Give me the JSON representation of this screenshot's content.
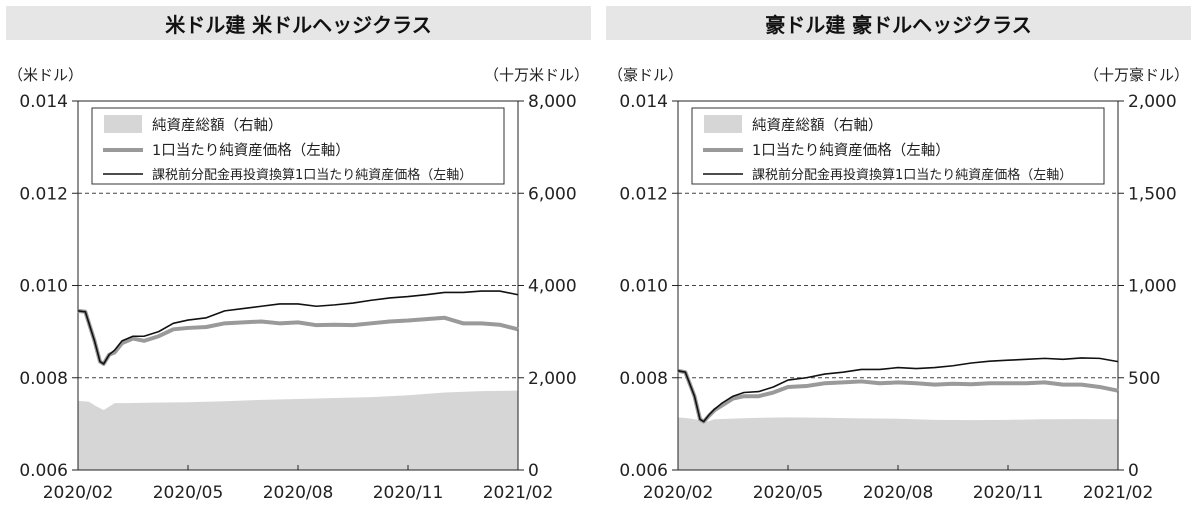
{
  "chart_data": [
    {
      "type": "line",
      "title": "米ドル建 米ドルヘッジクラス",
      "ylabel_left": "（米ドル）",
      "ylabel_right": "（十万米ドル）",
      "ylim_left": [
        0.006,
        0.014
      ],
      "ylim_right": [
        0,
        8000
      ],
      "yticks_left": [
        "0.014",
        "0.012",
        "0.010",
        "0.008",
        "0.006"
      ],
      "yticks_right": [
        "8,000",
        "6,000",
        "4,000",
        "2,000",
        "0"
      ],
      "xticks": [
        "2020/02",
        "2020/05",
        "2020/08",
        "2020/11",
        "2021/02"
      ],
      "grid": "dashed-horizontal",
      "legend_position": "top",
      "legend": [
        "純資産総額（右軸）",
        "1口当たり純資産価格（左軸）",
        "課税前分配金再投資換算1口当たり純資産価格（左軸）"
      ],
      "series": [
        {
          "name": "純資産総額（右軸）",
          "axis": "right",
          "kind": "area",
          "color": "#d6d6d6",
          "x": [
            0,
            0.3,
            0.5,
            0.7,
            1.0,
            1.3,
            2,
            3,
            4,
            5,
            6,
            7,
            8,
            9,
            10,
            11,
            12
          ],
          "values": [
            1500,
            1480,
            1380,
            1300,
            1450,
            1450,
            1460,
            1470,
            1490,
            1520,
            1540,
            1560,
            1580,
            1620,
            1680,
            1710,
            1720
          ]
        },
        {
          "name": "1口当たり純資産価格（左軸）",
          "axis": "left",
          "kind": "line",
          "color": "#9a9a9a",
          "x": [
            0,
            0.2,
            0.45,
            0.6,
            0.7,
            0.85,
            1.0,
            1.2,
            1.5,
            1.8,
            2.2,
            2.6,
            3.0,
            3.5,
            4.0,
            4.5,
            5.0,
            5.5,
            6.0,
            6.5,
            7.0,
            7.5,
            8.0,
            8.5,
            9.0,
            9.5,
            10.0,
            10.5,
            11.0,
            11.5,
            12.0
          ],
          "values": [
            0.00945,
            0.00943,
            0.0088,
            0.00835,
            0.0083,
            0.0085,
            0.00855,
            0.00875,
            0.00885,
            0.0088,
            0.0089,
            0.00905,
            0.00908,
            0.0091,
            0.00918,
            0.0092,
            0.00922,
            0.00918,
            0.0092,
            0.00914,
            0.00915,
            0.00914,
            0.00918,
            0.00922,
            0.00924,
            0.00927,
            0.0093,
            0.00918,
            0.00918,
            0.00915,
            0.00905
          ]
        },
        {
          "name": "課税前分配金再投資換算1口当たり純資産価格（左軸）",
          "axis": "left",
          "kind": "line",
          "color": "#111111",
          "x": [
            0,
            0.2,
            0.45,
            0.6,
            0.7,
            0.85,
            1.0,
            1.2,
            1.5,
            1.8,
            2.2,
            2.6,
            3.0,
            3.5,
            4.0,
            4.5,
            5.0,
            5.5,
            6.0,
            6.5,
            7.0,
            7.5,
            8.0,
            8.5,
            9.0,
            9.5,
            10.0,
            10.5,
            11.0,
            11.5,
            12.0
          ],
          "values": [
            0.00945,
            0.00943,
            0.0088,
            0.00835,
            0.0083,
            0.0085,
            0.0086,
            0.0088,
            0.0089,
            0.0089,
            0.009,
            0.00918,
            0.00925,
            0.0093,
            0.00945,
            0.0095,
            0.00955,
            0.0096,
            0.0096,
            0.00955,
            0.00958,
            0.00962,
            0.00968,
            0.00973,
            0.00976,
            0.0098,
            0.00985,
            0.00985,
            0.00988,
            0.00988,
            0.0098
          ]
        }
      ]
    },
    {
      "type": "line",
      "title": "豪ドル建 豪ドルヘッジクラス",
      "ylabel_left": "（豪ドル）",
      "ylabel_right": "（十万豪ドル）",
      "ylim_left": [
        0.006,
        0.014
      ],
      "ylim_right": [
        0,
        2000
      ],
      "yticks_left": [
        "0.014",
        "0.012",
        "0.010",
        "0.008",
        "0.006"
      ],
      "yticks_right": [
        "2,000",
        "1,500",
        "1,000",
        "500",
        "0"
      ],
      "xticks": [
        "2020/02",
        "2020/05",
        "2020/08",
        "2020/11",
        "2021/02"
      ],
      "grid": "dashed-horizontal",
      "legend_position": "top",
      "legend": [
        "純資産総額（右軸）",
        "1口当たり純資産価格（左軸）",
        "課税前分配金再投資換算1口当たり純資産価格（左軸）"
      ],
      "series": [
        {
          "name": "純資産総額（右軸）",
          "axis": "right",
          "kind": "area",
          "color": "#d6d6d6",
          "x": [
            0,
            0.3,
            0.6,
            0.8,
            1.0,
            2,
            3,
            4,
            5,
            6,
            7,
            8,
            9,
            10,
            11,
            12
          ],
          "values": [
            285,
            280,
            270,
            262,
            275,
            282,
            285,
            283,
            280,
            278,
            272,
            270,
            272,
            275,
            276,
            275
          ]
        },
        {
          "name": "1口当たり純資産価格（左軸）",
          "axis": "left",
          "kind": "line",
          "color": "#9a9a9a",
          "x": [
            0,
            0.2,
            0.45,
            0.6,
            0.7,
            0.85,
            1.0,
            1.2,
            1.5,
            1.8,
            2.2,
            2.6,
            3.0,
            3.5,
            4.0,
            4.5,
            5.0,
            5.5,
            6.0,
            6.5,
            7.0,
            7.5,
            8.0,
            8.5,
            9.0,
            9.5,
            10.0,
            10.5,
            11.0,
            11.5,
            12.0
          ],
          "values": [
            0.00815,
            0.00812,
            0.0076,
            0.0071,
            0.00705,
            0.00718,
            0.0073,
            0.0074,
            0.00755,
            0.0076,
            0.0076,
            0.00768,
            0.0078,
            0.00782,
            0.00788,
            0.0079,
            0.00792,
            0.00788,
            0.0079,
            0.00788,
            0.00785,
            0.00787,
            0.00786,
            0.00788,
            0.00788,
            0.00788,
            0.0079,
            0.00785,
            0.00785,
            0.0078,
            0.00772
          ]
        },
        {
          "name": "課税前分配金再投資換算1口当たり純資産価格（左軸）",
          "axis": "left",
          "kind": "line",
          "color": "#111111",
          "x": [
            0,
            0.2,
            0.45,
            0.6,
            0.7,
            0.85,
            1.0,
            1.2,
            1.5,
            1.8,
            2.2,
            2.6,
            3.0,
            3.5,
            4.0,
            4.5,
            5.0,
            5.5,
            6.0,
            6.5,
            7.0,
            7.5,
            8.0,
            8.5,
            9.0,
            9.5,
            10.0,
            10.5,
            11.0,
            11.5,
            12.0
          ],
          "values": [
            0.00815,
            0.00812,
            0.0076,
            0.0071,
            0.00705,
            0.0072,
            0.00732,
            0.00745,
            0.0076,
            0.00768,
            0.0077,
            0.0078,
            0.00795,
            0.008,
            0.00808,
            0.00812,
            0.00818,
            0.00818,
            0.00822,
            0.0082,
            0.00822,
            0.00826,
            0.00832,
            0.00836,
            0.00838,
            0.0084,
            0.00842,
            0.0084,
            0.00843,
            0.00842,
            0.00835
          ]
        }
      ]
    }
  ]
}
